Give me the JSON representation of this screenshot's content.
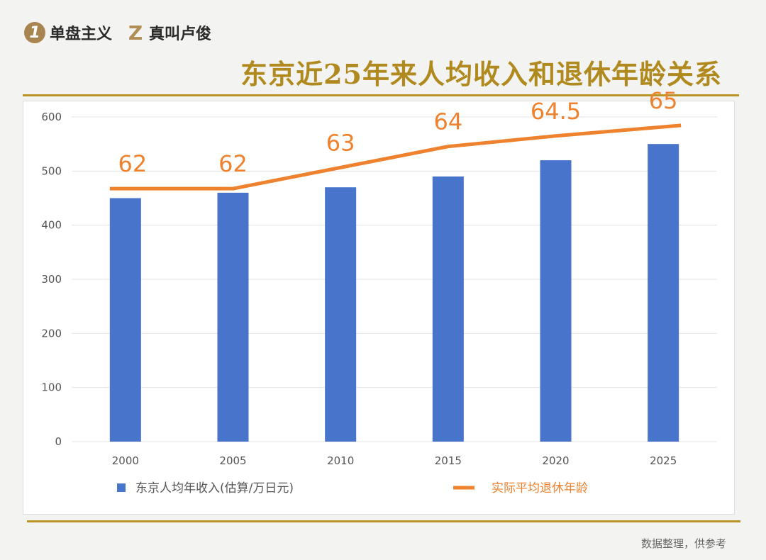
{
  "header": {
    "brand1": {
      "icon": "1",
      "name": "单盘主义"
    },
    "brand2": {
      "icon": "Z",
      "name": "真叫卢俊"
    },
    "title": "东京近25年来人均收入和退休年龄关系"
  },
  "footer": "数据整理，供参考",
  "colors": {
    "bar": "#4874cb",
    "line": "#ee822f",
    "title": "#b08a1e",
    "rule": "#b99424"
  },
  "chart_data": {
    "type": "bar+line",
    "categories": [
      "2000",
      "2005",
      "2010",
      "2015",
      "2020",
      "2025"
    ],
    "ylim": [
      0,
      600
    ],
    "yticks": [
      "0",
      "100",
      "200",
      "300",
      "400",
      "500",
      "600"
    ],
    "grid": true,
    "legend_placement": "bottom",
    "series": [
      {
        "name": "东京人均年收入(估算/万日元)",
        "type": "bar",
        "axis": "primary",
        "values": [
          450,
          460,
          470,
          490,
          520,
          550
        ]
      },
      {
        "name": "实际平均退休年龄",
        "type": "line",
        "axis": "secondary-hidden",
        "ylim": [
          50,
          65.4
        ],
        "values": [
          62,
          62,
          63,
          64,
          64.5,
          65
        ],
        "labels": [
          "62",
          "62",
          "63",
          "64",
          "64.5",
          "65"
        ]
      }
    ]
  }
}
